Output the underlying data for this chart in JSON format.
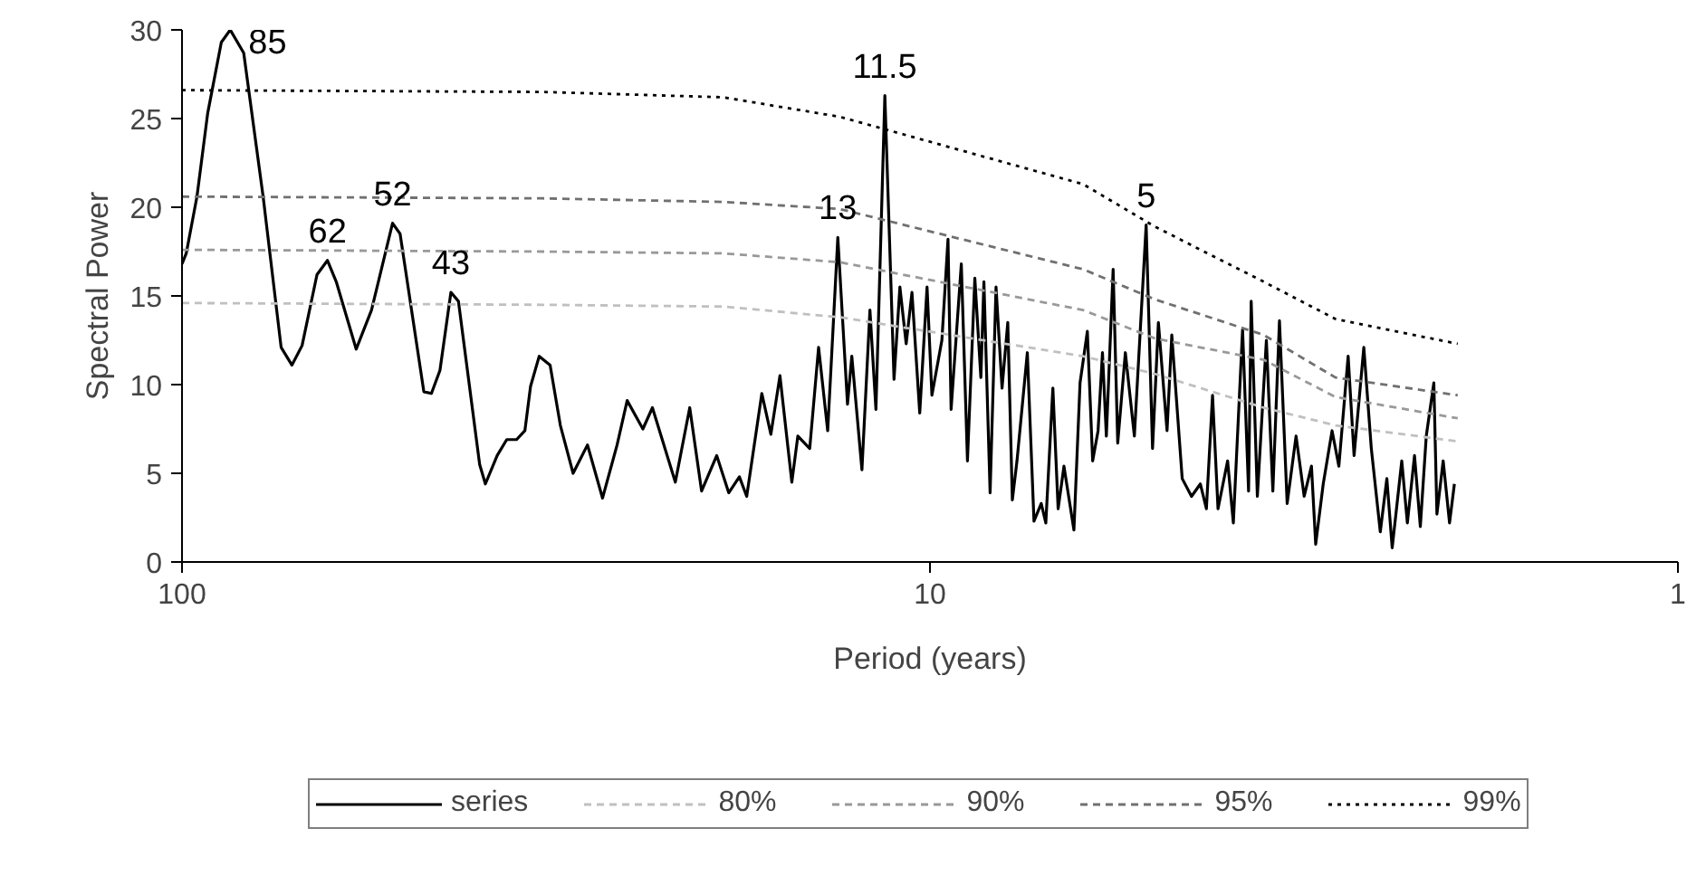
{
  "chart_data": {
    "type": "line",
    "xlabel": "Period (years)",
    "ylabel": "Spectral Power",
    "log": "x",
    "xlim": [
      100,
      1
    ],
    "xticks": [
      100,
      10,
      1
    ],
    "ylim": [
      0,
      30
    ],
    "yticks": [
      0,
      5,
      10,
      15,
      20,
      25,
      30
    ],
    "grid": false,
    "legend": "bottom",
    "marker": "none",
    "series": [
      {
        "name": "series",
        "color": "#000000",
        "line_style": "solid",
        "x": [
          100,
          98.7,
          95.5,
          92.4,
          88.6,
          86.2,
          82.7,
          77.9,
          73.7,
          71.3,
          69.1,
          66.0,
          63.9,
          62.2,
          58.5,
          55.8,
          52.3,
          51.1,
          47.5,
          46.4,
          45.2,
          43.7,
          42.7,
          40.0,
          39.3,
          37.9,
          36.8,
          35.7,
          34.8,
          34.2,
          33.3,
          32.2,
          31.2,
          30.0,
          28.7,
          27.4,
          26.2,
          25.4,
          24.2,
          23.5,
          21.9,
          20.95,
          20.2,
          19.28,
          18.58,
          17.98,
          17.58,
          16.78,
          16.32,
          15.87,
          15.3,
          15.02,
          14.48,
          14.09,
          13.7,
          13.28,
          12.89,
          12.72,
          12.33,
          12.03,
          11.81,
          11.49,
          11.17,
          10.97,
          10.76,
          10.57,
          10.32,
          10.09,
          9.94,
          9.64,
          9.46,
          9.37,
          9.08,
          8.91,
          8.71,
          8.55,
          8.47,
          8.31,
          8.16,
          8.01,
          7.87,
          7.76,
          7.65,
          7.41,
          7.26,
          7.1,
          7.0,
          6.85,
          6.74,
          6.62,
          6.42,
          6.3,
          6.16,
          6.06,
          5.96,
          5.88,
          5.81,
          5.69,
          5.61,
          5.48,
          5.33,
          5.14,
          5.04,
          4.95,
          4.82,
          4.75,
          4.6,
          4.47,
          4.35,
          4.27,
          4.19,
          4.12,
          4.0,
          3.93,
          3.82,
          3.75,
          3.72,
          3.65,
          3.55,
          3.48,
          3.41,
          3.33,
          3.24,
          3.16,
          3.09,
          3.05,
          2.98,
          2.9,
          2.84,
          2.76,
          2.71,
          2.63,
          2.57,
          2.5,
          2.45,
          2.41,
          2.34,
          2.3,
          2.25,
          2.21,
          2.17,
          2.12,
          2.1,
          2.06,
          2.02,
          1.99
        ],
        "values": [
          16.8,
          17.4,
          20.6,
          25.3,
          29.3,
          30.0,
          28.7,
          20.6,
          12.1,
          11.1,
          12.2,
          16.2,
          17.0,
          15.8,
          12.0,
          14.2,
          19.1,
          18.5,
          9.6,
          9.5,
          10.8,
          15.2,
          14.7,
          5.5,
          4.4,
          6.0,
          6.9,
          6.9,
          7.4,
          9.9,
          11.6,
          11.1,
          7.7,
          5.0,
          6.6,
          3.6,
          6.6,
          9.1,
          7.5,
          8.7,
          4.5,
          8.7,
          4.0,
          6.0,
          3.9,
          4.8,
          3.7,
          9.5,
          7.2,
          10.5,
          4.5,
          7.1,
          6.4,
          12.1,
          7.4,
          18.3,
          8.9,
          11.6,
          5.2,
          14.2,
          8.6,
          26.3,
          10.3,
          15.5,
          12.3,
          15.2,
          8.4,
          15.5,
          9.4,
          12.5,
          18.2,
          8.6,
          16.8,
          5.7,
          16.0,
          10.4,
          15.8,
          3.9,
          15.5,
          9.8,
          13.5,
          3.5,
          5.7,
          11.8,
          2.3,
          3.3,
          2.2,
          9.8,
          3.0,
          5.4,
          1.8,
          10.1,
          13.0,
          5.7,
          7.4,
          11.8,
          7.1,
          16.5,
          6.7,
          11.8,
          7.1,
          19.0,
          6.4,
          13.5,
          7.4,
          12.8,
          4.7,
          3.7,
          4.4,
          3.0,
          9.4,
          3.0,
          5.7,
          2.2,
          13.1,
          4.0,
          14.7,
          3.7,
          12.5,
          4.0,
          13.6,
          3.3,
          7.1,
          3.7,
          5.4,
          1.0,
          4.4,
          7.4,
          5.4,
          11.6,
          6.0,
          12.1,
          6.4,
          1.7,
          4.7,
          0.8,
          5.7,
          2.2,
          6.0,
          2.0,
          7.1,
          10.1,
          2.7,
          5.7,
          2.2,
          4.4
        ]
      },
      {
        "name": "80%",
        "color": "#c0c0c0",
        "line_style": "dashed",
        "x": [
          100,
          33.0,
          18.9,
          13.2,
          6.24,
          5.0,
          3.58,
          2.87,
          1.97
        ],
        "values": [
          14.6,
          14.5,
          14.4,
          13.8,
          11.6,
          10.6,
          8.7,
          7.7,
          6.8
        ]
      },
      {
        "name": "90%",
        "color": "#999999",
        "line_style": "dashed",
        "x": [
          100,
          33.0,
          18.9,
          13.2,
          6.24,
          5.0,
          3.58,
          2.87,
          1.97
        ],
        "values": [
          17.6,
          17.5,
          17.4,
          16.9,
          14.2,
          12.6,
          11.4,
          9.3,
          8.1
        ]
      },
      {
        "name": "95%",
        "color": "#707070",
        "line_style": "dashed",
        "x": [
          100,
          33.0,
          18.9,
          13.2,
          6.24,
          5.0,
          3.58,
          2.87,
          1.97
        ],
        "values": [
          20.6,
          20.5,
          20.3,
          19.9,
          16.5,
          14.8,
          12.8,
          10.4,
          9.4
        ]
      },
      {
        "name": "99%",
        "color": "#000000",
        "line_style": "dotted",
        "x": [
          100,
          33.0,
          18.9,
          13.2,
          6.24,
          5.0,
          3.58,
          2.87,
          1.97
        ],
        "values": [
          26.6,
          26.5,
          26.2,
          25.1,
          21.3,
          18.9,
          15.8,
          13.7,
          12.3
        ]
      }
    ],
    "annotations": [
      {
        "text": "85",
        "x": 86.2,
        "y": 30.0
      },
      {
        "text": "62",
        "x": 63.9,
        "y": 17.0
      },
      {
        "text": "52",
        "x": 52.3,
        "y": 19.1
      },
      {
        "text": "43",
        "x": 43.7,
        "y": 15.2
      },
      {
        "text": "13",
        "x": 13.28,
        "y": 18.3
      },
      {
        "text": "11.5",
        "x": 11.49,
        "y": 26.3
      },
      {
        "text": "5",
        "x": 5.14,
        "y": 19.0
      }
    ]
  }
}
